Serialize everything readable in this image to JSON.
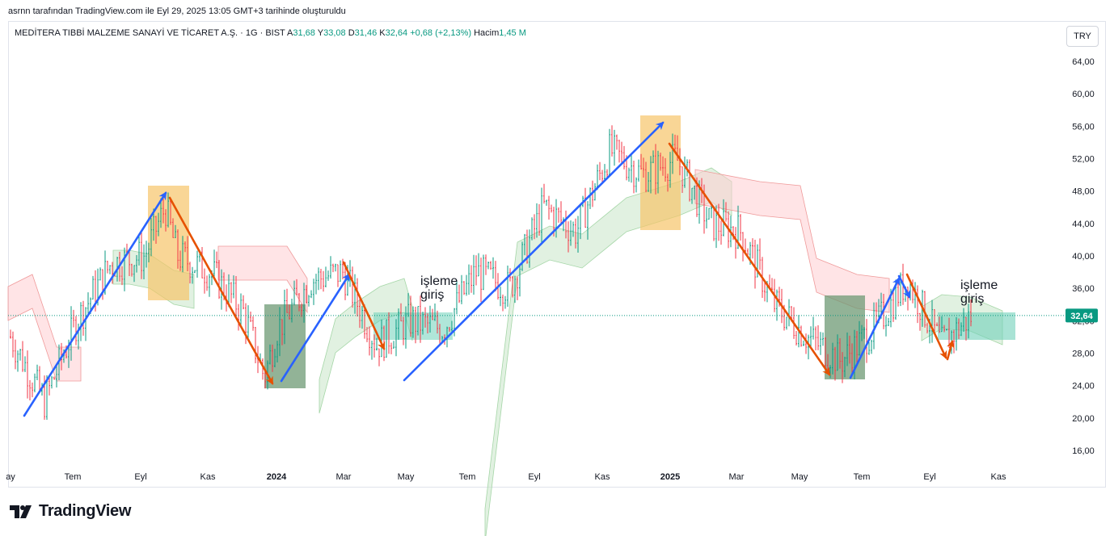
{
  "attribution": "asrnn tarafından TradingView.com ile Eyl 29, 2025 13:05 GMT+3 tarihinde oluşturuldu",
  "legend": {
    "symbol": "MEDİTERA TIBBİ MALZEME SANAYİ VE TİCARET A.Ş. · 1G · BIST",
    "open_label": "A",
    "open": "31,68",
    "high_label": "Y",
    "high": "33,08",
    "low_label": "D",
    "low": "31,46",
    "close_label": "K",
    "close": "32,64",
    "change": "+0,68 (+2,13%)",
    "volume_label": "Hacim",
    "volume": "1,45 M"
  },
  "currency_button": "TRY",
  "brand": "TradingView",
  "colors": {
    "up": "#089981",
    "down": "#f23645",
    "blue_arrow": "#2962ff",
    "orange_arrow": "#e65100",
    "cloud_green": "#c8e6c9",
    "cloud_red": "#ffcdd2",
    "yellow_box": "#f7c56a",
    "dark_green_box": "#6e9a74",
    "teal_box": "#6fd1b9",
    "price_tag": "#089981"
  },
  "chart_data": {
    "type": "candlestick",
    "ylim": [
      14,
      66
    ],
    "y_ticks": [
      "16,00",
      "20,00",
      "24,00",
      "28,00",
      "32,00",
      "36,00",
      "40,00",
      "44,00",
      "48,00",
      "52,00",
      "56,00",
      "60,00",
      "64,00"
    ],
    "x_ticks": [
      {
        "label": "ay",
        "bold": false
      },
      {
        "label": "Tem",
        "bold": false
      },
      {
        "label": "Eyl",
        "bold": false
      },
      {
        "label": "Kas",
        "bold": false
      },
      {
        "label": "2024",
        "bold": true
      },
      {
        "label": "Mar",
        "bold": false
      },
      {
        "label": "May",
        "bold": false
      },
      {
        "label": "Tem",
        "bold": false
      },
      {
        "label": "Eyl",
        "bold": false
      },
      {
        "label": "Kas",
        "bold": false
      },
      {
        "label": "2025",
        "bold": true
      },
      {
        "label": "Mar",
        "bold": false
      },
      {
        "label": "May",
        "bold": false
      },
      {
        "label": "Tem",
        "bold": false
      },
      {
        "label": "Eyl",
        "bold": false
      },
      {
        "label": "Kas",
        "bold": false
      }
    ],
    "last_price": "32,64",
    "last_price_value": 32.64,
    "price_path": [
      {
        "date": "2023-05",
        "price": 30
      },
      {
        "date": "2023-06",
        "price": 22
      },
      {
        "date": "2023-07",
        "price": 32
      },
      {
        "date": "2023-08",
        "price": 39
      },
      {
        "date": "2023-09",
        "price": 40
      },
      {
        "date": "2023-09-20",
        "price": 46
      },
      {
        "date": "2023-10",
        "price": 40
      },
      {
        "date": "2023-11",
        "price": 38
      },
      {
        "date": "2023-12",
        "price": 33
      },
      {
        "date": "2023-12-20",
        "price": 25
      },
      {
        "date": "2024-01",
        "price": 31
      },
      {
        "date": "2024-02",
        "price": 37
      },
      {
        "date": "2024-03",
        "price": 38
      },
      {
        "date": "2024-04",
        "price": 29
      },
      {
        "date": "2024-05",
        "price": 32
      },
      {
        "date": "2024-06",
        "price": 31
      },
      {
        "date": "2024-07",
        "price": 38
      },
      {
        "date": "2024-08",
        "price": 36
      },
      {
        "date": "2024-09",
        "price": 46
      },
      {
        "date": "2024-10",
        "price": 43
      },
      {
        "date": "2024-11",
        "price": 53
      },
      {
        "date": "2024-12",
        "price": 50
      },
      {
        "date": "2025-01",
        "price": 52
      },
      {
        "date": "2025-02",
        "price": 44
      },
      {
        "date": "2025-03",
        "price": 43
      },
      {
        "date": "2025-04",
        "price": 34
      },
      {
        "date": "2025-05",
        "price": 30
      },
      {
        "date": "2025-06",
        "price": 27
      },
      {
        "date": "2025-07",
        "price": 31
      },
      {
        "date": "2025-08",
        "price": 37
      },
      {
        "date": "2025-09",
        "price": 29
      },
      {
        "date": "2025-09-29",
        "price": 32.64
      }
    ],
    "annotations": [
      {
        "text_lines": [
          "işleme",
          "giriş"
        ]
      },
      {
        "text_lines": [
          "işleme",
          "giriş"
        ]
      }
    ]
  }
}
